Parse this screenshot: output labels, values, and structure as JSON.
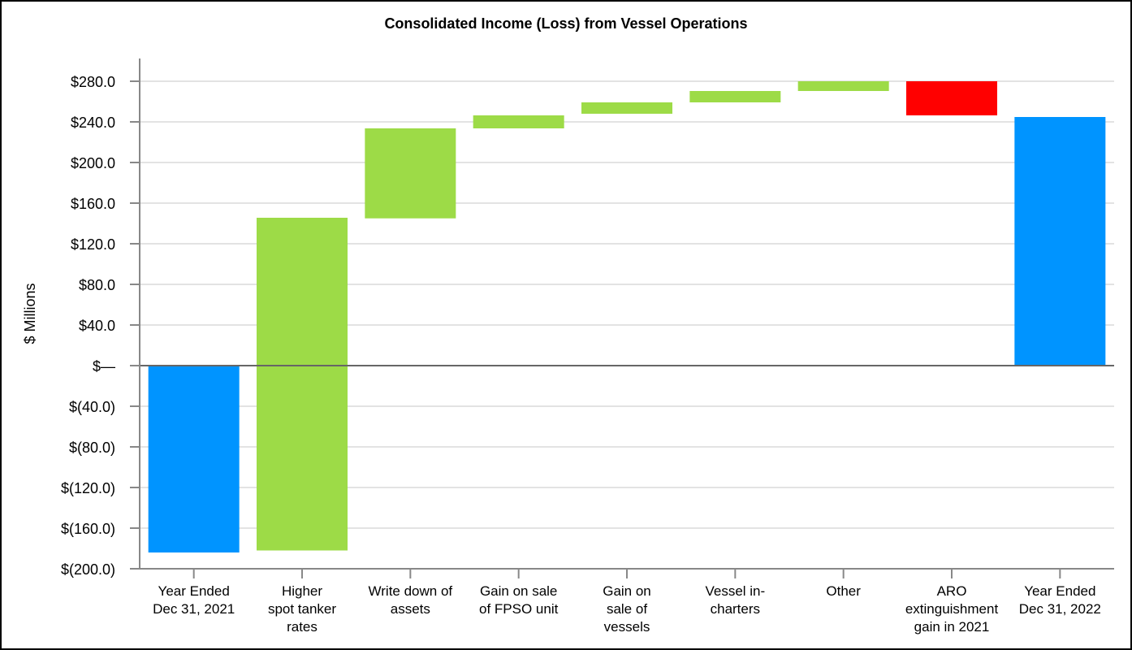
{
  "chart_data": {
    "type": "bar",
    "subtype": "waterfall",
    "title": "Consolidated Income (Loss) from Vessel Operations",
    "ylabel": "$ Millions",
    "xlabel": "",
    "ylim": [
      -200,
      300
    ],
    "yticks": [
      -200,
      -160,
      -120,
      -80,
      -40,
      0,
      40,
      80,
      120,
      160,
      200,
      240,
      280
    ],
    "ytick_labels": [
      "$(200.0)",
      "$(160.0)",
      "$(120.0)",
      "$(80.0)",
      "$(40.0)",
      "$—",
      "$40.0",
      "$80.0",
      "$120.0",
      "$160.0",
      "$200.0",
      "$240.0",
      "$280.0"
    ],
    "grid": true,
    "categories": [
      [
        "Year Ended",
        "Dec 31, 2021"
      ],
      [
        "Higher",
        "spot tanker",
        "rates"
      ],
      [
        "Write down of",
        "assets"
      ],
      [
        "Gain on sale",
        "of FPSO unit"
      ],
      [
        "Gain on",
        "sale of",
        "vessels"
      ],
      [
        "Vessel in-",
        "charters"
      ],
      [
        "Other"
      ],
      [
        "ARO",
        "extinguishment",
        "gain in 2021"
      ],
      [
        "Year Ended",
        "Dec 31, 2022"
      ]
    ],
    "bars": [
      {
        "low": -184.0,
        "high": 0,
        "kind": "total"
      },
      {
        "low": -182.0,
        "high": 145.6,
        "kind": "increase"
      },
      {
        "low": 145.0,
        "high": 233.6,
        "kind": "increase"
      },
      {
        "low": 233.6,
        "high": 246.4,
        "kind": "increase"
      },
      {
        "low": 248.0,
        "high": 259.2,
        "kind": "increase"
      },
      {
        "low": 259.2,
        "high": 270.4,
        "kind": "increase"
      },
      {
        "low": 270.4,
        "high": 280.0,
        "kind": "increase"
      },
      {
        "low": 246.4,
        "high": 280.0,
        "kind": "decrease"
      },
      {
        "low": 0,
        "high": 244.8,
        "kind": "total"
      }
    ],
    "colors": {
      "total": "#0094ff",
      "increase": "#9ddb47",
      "decrease": "#ff0000"
    },
    "legend": "none"
  }
}
